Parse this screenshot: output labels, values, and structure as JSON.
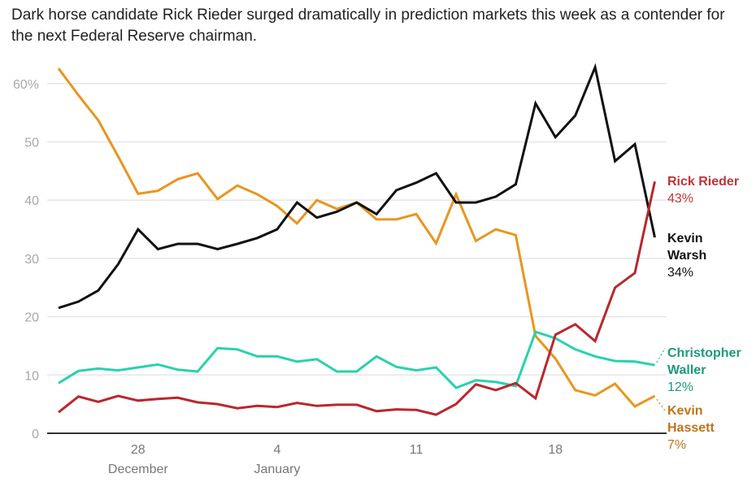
{
  "chart_data": {
    "type": "line",
    "title": "",
    "subtitle": "Dark horse candidate Rick Rieder surged dramatically in prediction markets this week as a contender for the next Federal Reserve chairman.",
    "xlabel": "",
    "ylabel": "",
    "ylim": [
      0,
      63
    ],
    "yticks": [
      0,
      10,
      20,
      30,
      40,
      50,
      60
    ],
    "ytick_labels": [
      "0",
      "10",
      "20",
      "30",
      "40",
      "50",
      "60%"
    ],
    "grid": true,
    "x": [
      "Dec 24",
      "Dec 25",
      "Dec 26",
      "Dec 27",
      "Dec 28",
      "Dec 29",
      "Dec 30",
      "Dec 31",
      "Jan 1",
      "Jan 2",
      "Jan 3",
      "Jan 4",
      "Jan 5",
      "Jan 6",
      "Jan 7",
      "Jan 8",
      "Jan 9",
      "Jan 10",
      "Jan 11",
      "Jan 12",
      "Jan 13",
      "Jan 14",
      "Jan 15",
      "Jan 16",
      "Jan 17",
      "Jan 18",
      "Jan 19",
      "Jan 20",
      "Jan 21",
      "Jan 22",
      "Jan 23"
    ],
    "xticks": [
      {
        "index": 4,
        "label": "28",
        "sublabel": "December"
      },
      {
        "index": 11,
        "label": "4",
        "sublabel": "January"
      },
      {
        "index": 18,
        "label": "11",
        "sublabel": ""
      },
      {
        "index": 25,
        "label": "18",
        "sublabel": ""
      }
    ],
    "series": [
      {
        "name": "Kevin Hassett",
        "label_lines": [
          "Kevin",
          "Hassett"
        ],
        "end_label": "7%",
        "color": "#e8961e",
        "label_color": "#c0731a",
        "values": [
          62.6,
          58.0,
          53.7,
          47.5,
          41.1,
          41.6,
          43.6,
          44.6,
          40.2,
          42.5,
          41.0,
          39.0,
          36.0,
          40.0,
          38.5,
          39.6,
          36.7,
          36.7,
          37.6,
          32.6,
          41.0,
          33.0,
          35.0,
          34.0,
          16.7,
          12.8,
          7.4,
          6.5,
          8.5,
          4.6,
          6.4
        ]
      },
      {
        "name": "Kevin Warsh",
        "label_lines": [
          "Kevin",
          "Warsh"
        ],
        "end_label": "34%",
        "color": "#111111",
        "label_color": "#111111",
        "values": [
          21.5,
          22.6,
          24.5,
          29.0,
          35.0,
          31.6,
          32.5,
          32.5,
          31.6,
          32.5,
          33.5,
          35.0,
          39.6,
          37.0,
          38.0,
          39.6,
          37.6,
          41.7,
          43.0,
          44.6,
          39.6,
          39.6,
          40.6,
          42.7,
          56.6,
          50.8,
          54.5,
          62.8,
          46.7,
          49.6,
          33.6
        ]
      },
      {
        "name": "Christopher Waller",
        "label_lines": [
          "Christopher",
          "Waller"
        ],
        "end_label": "12%",
        "color": "#2ad1ad",
        "label_color": "#1a9c7a",
        "values": [
          8.6,
          10.7,
          11.1,
          10.8,
          11.3,
          11.8,
          10.9,
          10.6,
          14.6,
          14.4,
          13.2,
          13.2,
          12.3,
          12.7,
          10.6,
          10.6,
          13.2,
          11.4,
          10.8,
          11.3,
          7.8,
          9.1,
          8.8,
          8.1,
          17.4,
          16.3,
          14.4,
          13.2,
          12.4,
          12.3,
          11.7
        ]
      },
      {
        "name": "Rick Rieder",
        "label_lines": [
          "Rick Rieder"
        ],
        "end_label": "43%",
        "color": "#b8282e",
        "label_color": "#c0333a",
        "values": [
          3.6,
          6.3,
          5.4,
          6.4,
          5.6,
          5.9,
          6.1,
          5.3,
          5.0,
          4.3,
          4.7,
          4.5,
          5.2,
          4.7,
          4.9,
          4.9,
          3.8,
          4.1,
          4.0,
          3.2,
          5.0,
          8.4,
          7.4,
          8.6,
          6.0,
          16.9,
          18.7,
          15.8,
          25.0,
          27.5,
          43.2
        ]
      }
    ]
  }
}
